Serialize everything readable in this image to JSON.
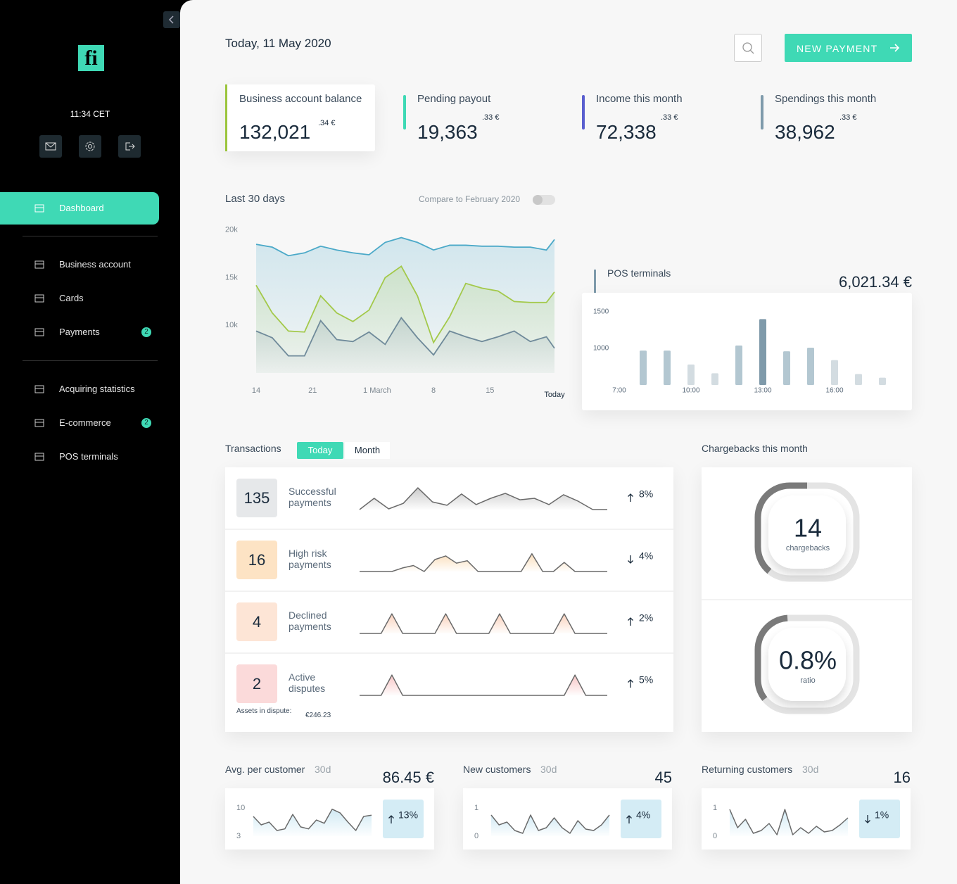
{
  "sidebar": {
    "logo": "fi",
    "time": "11:34 CET",
    "nav": [
      {
        "label": "Dashboard",
        "active": true
      },
      {
        "label": "Business account"
      },
      {
        "label": "Cards"
      },
      {
        "label": "Payments",
        "badge": "2"
      },
      {
        "label": "Acquiring statistics"
      },
      {
        "label": "E-commerce",
        "badge": "2"
      },
      {
        "label": "POS terminals"
      }
    ]
  },
  "header": {
    "date": "Today, 11 May 2020",
    "button": "NEW PAYMENT"
  },
  "kpis": [
    {
      "label": "Business account balance",
      "value": "132,021",
      "cents": ".34 €",
      "color": "#9bc53d"
    },
    {
      "label": "Pending payout",
      "value": "19,363",
      "cents": ".33 €",
      "color": "#3fd9b5"
    },
    {
      "label": "Income this month",
      "value": "72,338",
      "cents": ".33 €",
      "color": "#5a5fcf"
    },
    {
      "label": "Spendings this month",
      "value": "38,962",
      "cents": ".33 €",
      "color": "#7e9aab"
    }
  ],
  "trend_chart": {
    "type": "line",
    "title": "Last 30 days",
    "compare": "Compare to February 2020",
    "x": [
      0,
      2,
      4,
      6,
      8,
      10,
      12,
      14,
      16,
      18,
      20,
      22,
      24,
      26,
      28,
      30,
      32,
      34,
      36,
      37
    ],
    "xlim": [
      0,
      37
    ],
    "xticks": [
      {
        "value": 0,
        "label": "14"
      },
      {
        "value": 7,
        "label": "21"
      },
      {
        "value": 15,
        "label": "1 March"
      },
      {
        "value": 22,
        "label": "8"
      },
      {
        "value": 29,
        "label": "15"
      },
      {
        "value": 37,
        "label": "Today"
      }
    ],
    "ylim": [
      5000,
      20500
    ],
    "yticks": [
      {
        "value": 20000,
        "label": "20k"
      },
      {
        "value": 15000,
        "label": "15k"
      },
      {
        "value": 10000,
        "label": "10k"
      }
    ],
    "series": [
      {
        "color": "#4ba9c8",
        "values": [
          18500,
          18200,
          17300,
          17600,
          18300,
          17900,
          17600,
          17400,
          18700,
          19200,
          18700,
          17900,
          18400,
          18400,
          18300,
          18300,
          18200,
          18200,
          17900,
          19000
        ]
      },
      {
        "color": "#a3c94a",
        "values": [
          14200,
          11300,
          9400,
          9300,
          13100,
          11300,
          10400,
          11600,
          15000,
          16200,
          13100,
          8200,
          10900,
          14400,
          13900,
          13600,
          12500,
          12400,
          12400,
          13500
        ]
      },
      {
        "color": "#6f8a9a",
        "values": [
          9400,
          8700,
          6800,
          6800,
          10500,
          8500,
          8300,
          9300,
          8000,
          10800,
          8700,
          6900,
          9400,
          8800,
          8300,
          8800,
          9400,
          8300,
          8800,
          7600
        ]
      }
    ]
  },
  "pos_chart": {
    "type": "bar",
    "title": "POS terminals",
    "total": "6,021.34 €",
    "categories": [
      "7:00",
      null,
      null,
      "10:00",
      null,
      null,
      "13:00",
      null,
      null,
      "16:00",
      null,
      null
    ],
    "values": [
      null,
      970,
      970,
      780,
      660,
      1040,
      1400,
      960,
      1010,
      840,
      650,
      600
    ],
    "colors": [
      "#b3c7d1",
      "#b3c7d1",
      "#b3c7d1",
      "#d3dce1",
      "#d3dce1",
      "#b3c7d1",
      "#7f9aaa",
      "#b3c7d1",
      "#b3c7d1",
      "#d3dce1",
      "#d3dce1",
      "#d3dce1"
    ],
    "ylim": [
      500,
      1600
    ],
    "yticks": [
      1500,
      1000
    ]
  },
  "transactions": {
    "type": "sparkline",
    "title": "Transactions",
    "tabs": [
      "Today",
      "Month"
    ],
    "ylim": [
      0,
      10
    ],
    "rows": [
      {
        "count": "135",
        "label": "Successful payments",
        "change": "8%",
        "direction": "up",
        "box": "#e6e8ea",
        "fill": "#8a8a8a",
        "values": [
          0,
          4.7,
          0.3,
          2.6,
          9.1,
          3.2,
          1.8,
          6.5,
          2.1,
          4.7,
          6.8,
          4.1,
          4.7,
          2.1,
          6.2,
          3.5,
          0,
          0
        ]
      },
      {
        "count": "16",
        "label": "High risk payments",
        "change": "4%",
        "direction": "down",
        "box": "#fde3c4",
        "fill": "#f5b76b",
        "values": [
          0,
          0,
          0,
          0,
          1.5,
          2.5,
          0,
          5,
          6.5,
          3.5,
          4.5,
          0,
          0,
          0,
          0,
          0,
          7.4,
          0,
          0,
          3.8,
          0,
          0,
          0,
          0
        ]
      },
      {
        "count": "4",
        "label": "Declined payments",
        "change": "2%",
        "direction": "up",
        "box": "#fde5d6",
        "fill": "#f59a6b",
        "values": [
          0,
          0,
          0,
          8.2,
          0,
          0,
          0,
          0,
          8.2,
          0,
          0,
          0,
          0,
          8.2,
          0,
          0,
          0,
          0,
          0,
          8.2,
          0,
          0,
          0,
          0
        ]
      },
      {
        "count": "2",
        "label": "Active disputes",
        "change": "5%",
        "direction": "up",
        "box": "#fbdada",
        "fill": "#f08080",
        "values": [
          0,
          0,
          0,
          8.5,
          0,
          0,
          0,
          0,
          0,
          0,
          0,
          0,
          0,
          0,
          0,
          0,
          0,
          0,
          0,
          0,
          8.5,
          0,
          0,
          0
        ]
      }
    ],
    "assets_label": "Assets in dispute:",
    "assets_value": "€246.23"
  },
  "chargebacks": {
    "title": "Chargebacks this month",
    "items": [
      {
        "value": "14",
        "label": "chargebacks"
      },
      {
        "value": "0.8%",
        "label": "ratio"
      }
    ]
  },
  "customers": [
    {
      "type": "sparkline",
      "title": "Avg. per customer",
      "period": "30d",
      "value": "86.45 €",
      "ylim": [
        3,
        10
      ],
      "yticks": [
        10,
        3
      ],
      "change": "13%",
      "direction": "up",
      "values": [
        7.9,
        5.8,
        6.5,
        4.4,
        4.8,
        8.4,
        5.3,
        4.8,
        7.0,
        6.2,
        9.7,
        8.8,
        6.5,
        4.4,
        7.9,
        8.2
      ]
    },
    {
      "type": "sparkline",
      "title": "New customers",
      "period": "30d",
      "value": "45",
      "ylim": [
        0,
        1
      ],
      "yticks": [
        1,
        0
      ],
      "change": "4%",
      "direction": "up",
      "values": [
        0.75,
        0.4,
        0.5,
        0.2,
        0.1,
        0.75,
        0.2,
        0.3,
        0.65,
        0.3,
        0.1,
        0.55,
        0.25,
        0.2,
        0.4,
        0.75
      ]
    },
    {
      "type": "sparkline",
      "title": "Returning customers",
      "period": "30d",
      "value": "16",
      "ylim": [
        0,
        1
      ],
      "yticks": [
        1,
        0
      ],
      "change": "1%",
      "direction": "down",
      "values": [
        0.95,
        0.3,
        0.6,
        0.1,
        0.2,
        0.45,
        0.05,
        0.95,
        0.05,
        0.3,
        0.1,
        0.35,
        0.15,
        0.2,
        0.4,
        0.65
      ]
    }
  ]
}
